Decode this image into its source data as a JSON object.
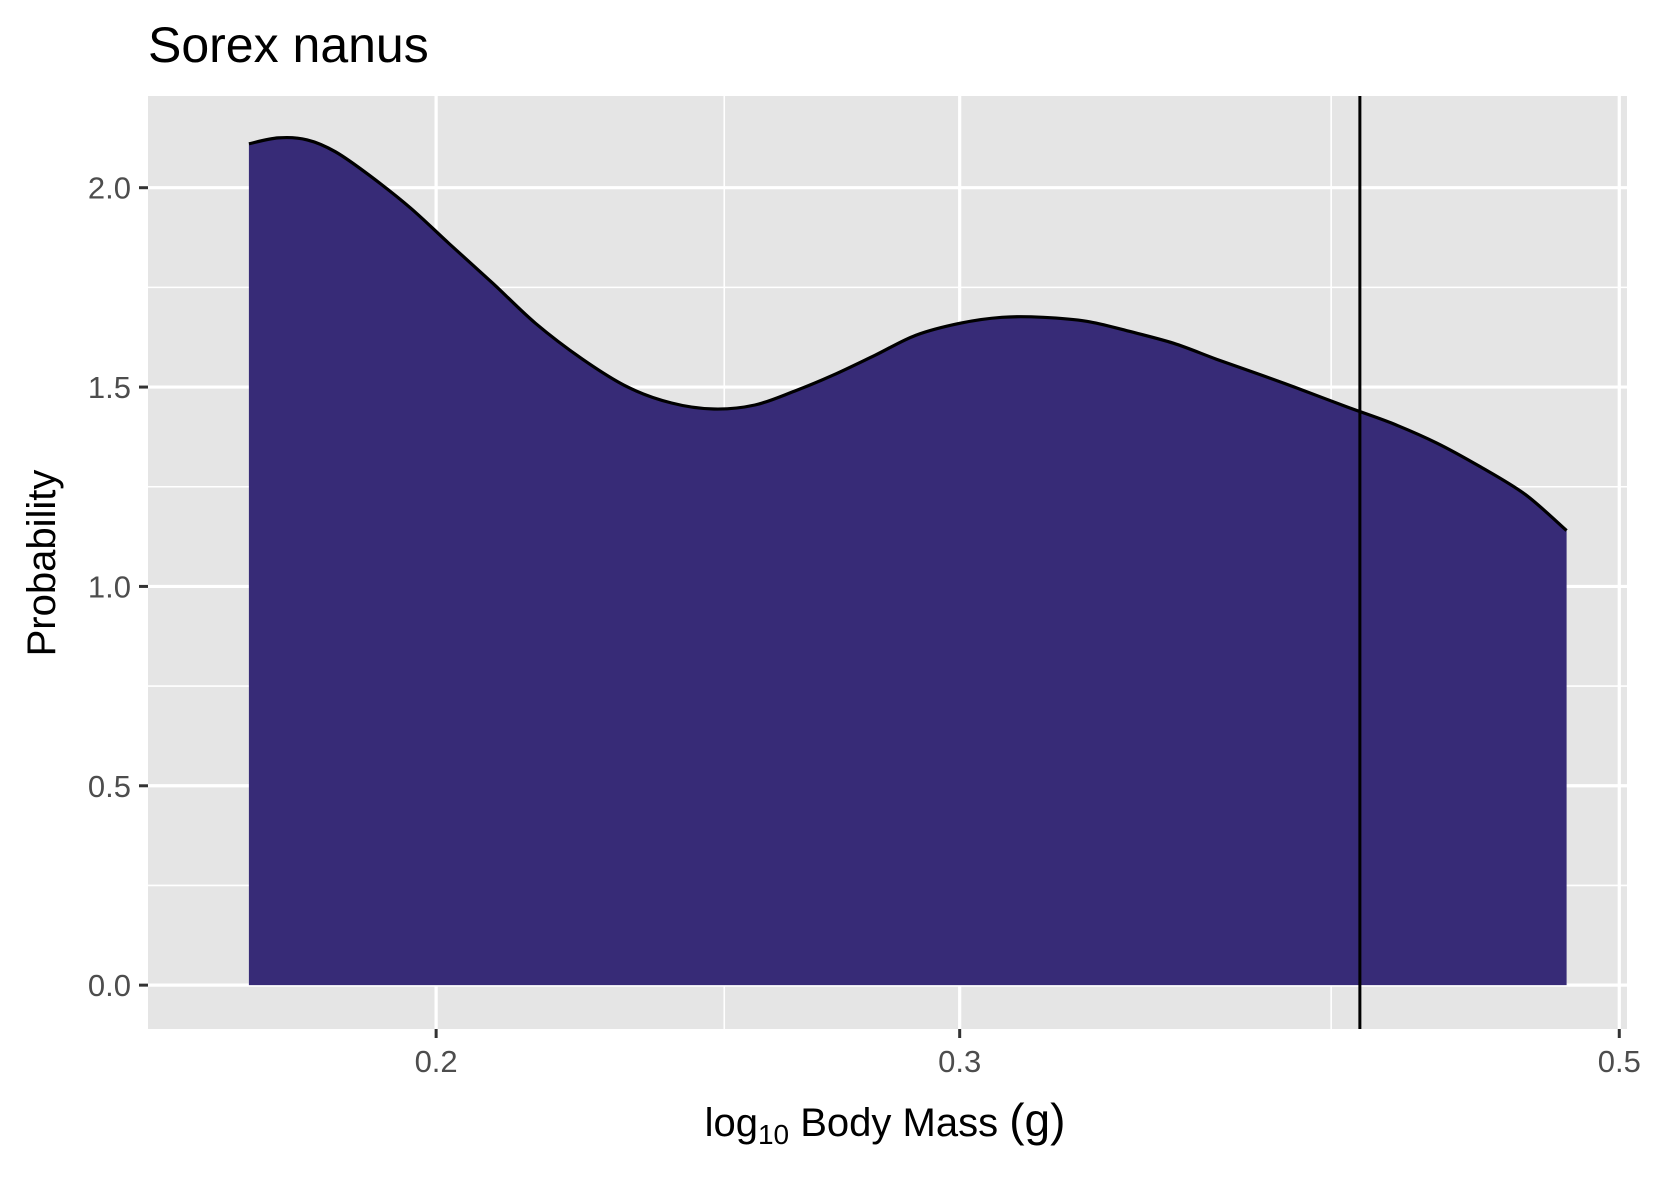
{
  "chart_data": {
    "type": "area",
    "title": "Sorex nanus",
    "xlabel": {
      "prefix": "log",
      "subscript": "10",
      "suffix": " Body Mass ",
      "unit": "(g)"
    },
    "ylabel": "Probability",
    "x_scale": "log10",
    "xlim": [
      0.16,
      0.503
    ],
    "ylim": [
      -0.11,
      2.23
    ],
    "x_ticks": [
      {
        "value": 0.2,
        "label": "0.2"
      },
      {
        "value": 0.3,
        "label": "0.3"
      },
      {
        "value": 0.5,
        "label": "0.5"
      }
    ],
    "x_minor_ticks": [
      0.25,
      0.4
    ],
    "y_ticks": [
      {
        "value": 0.0,
        "label": "0.0"
      },
      {
        "value": 0.5,
        "label": "0.5"
      },
      {
        "value": 1.0,
        "label": "1.0"
      },
      {
        "value": 1.5,
        "label": "1.5"
      },
      {
        "value": 2.0,
        "label": "2.0"
      }
    ],
    "y_minor_ticks": [
      0.25,
      0.75,
      1.25,
      1.75
    ],
    "series": [
      {
        "x": [
          0.173,
          0.177,
          0.181,
          0.185,
          0.19,
          0.196,
          0.202,
          0.209,
          0.216,
          0.224,
          0.232,
          0.24,
          0.248,
          0.256,
          0.264,
          0.272,
          0.281,
          0.29,
          0.3,
          0.31,
          0.32,
          0.331,
          0.342,
          0.354,
          0.366,
          0.379,
          0.392,
          0.405,
          0.419,
          0.434,
          0.449,
          0.465,
          0.48
        ],
        "y": [
          2.11,
          2.125,
          2.12,
          2.09,
          2.03,
          1.95,
          1.86,
          1.76,
          1.66,
          1.57,
          1.5,
          1.46,
          1.445,
          1.455,
          1.49,
          1.53,
          1.58,
          1.63,
          1.66,
          1.675,
          1.675,
          1.665,
          1.64,
          1.61,
          1.57,
          1.53,
          1.49,
          1.45,
          1.41,
          1.36,
          1.3,
          1.23,
          1.14
        ]
      }
    ],
    "vline_x": 0.409,
    "panel_background": "#e5e5e5",
    "grid": true,
    "grid_color": "#ffffff",
    "fill_color": "#372b77",
    "line_color": "#000000",
    "legend": "none"
  }
}
